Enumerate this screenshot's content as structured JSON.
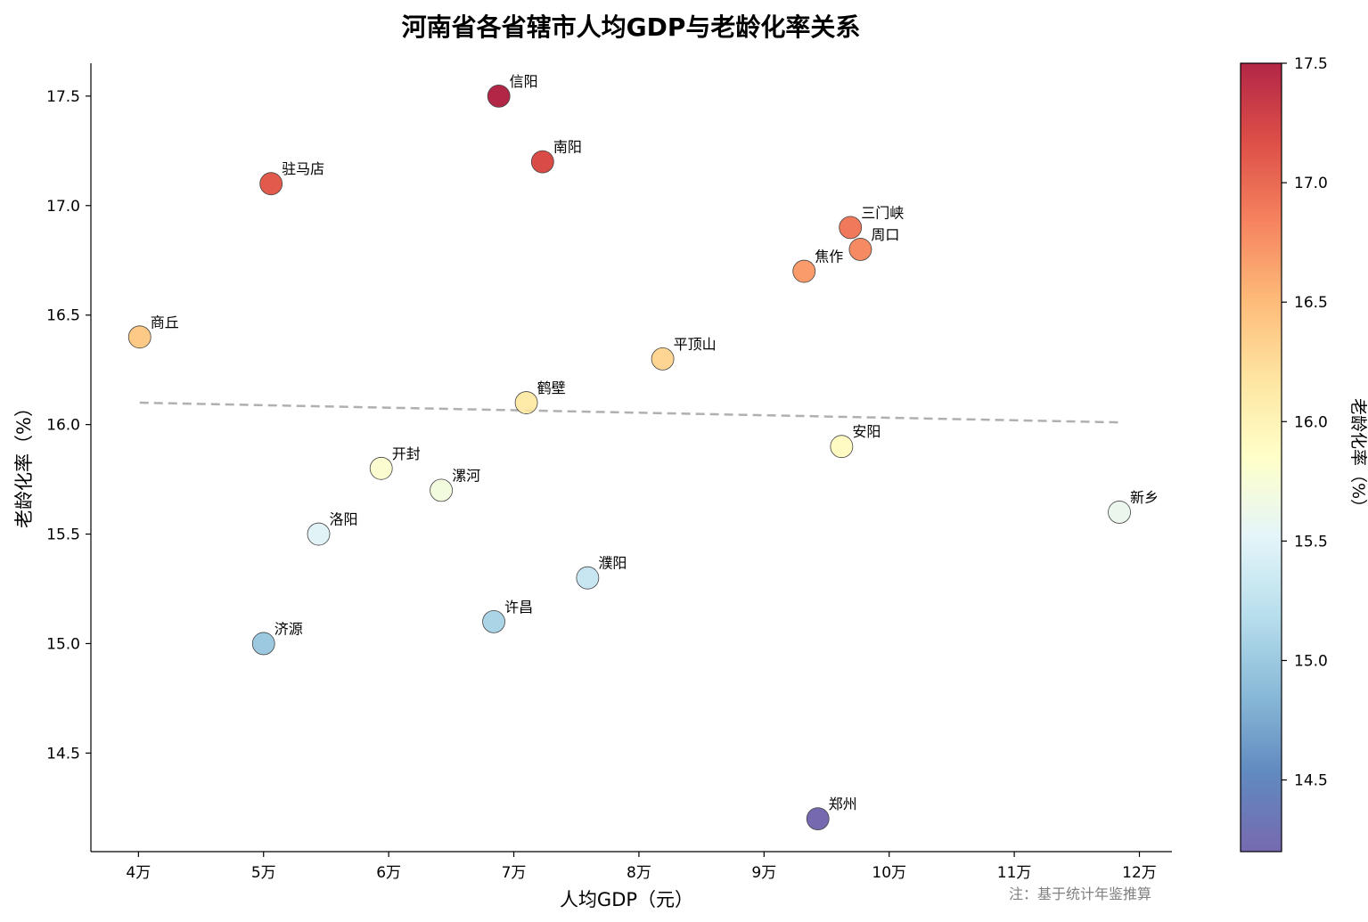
{
  "chart_data": {
    "type": "scatter",
    "title": "河南省各省辖市人均GDP与老龄化率关系",
    "xlabel": "人均GDP（元）",
    "ylabel": "老龄化率（%）",
    "xlim": [
      36200,
      122600
    ],
    "ylim": [
      14.05,
      17.65
    ],
    "x_ticks": [
      40000,
      50000,
      60000,
      70000,
      80000,
      90000,
      100000,
      110000,
      120000
    ],
    "x_tick_labels": [
      "4万",
      "5万",
      "6万",
      "7万",
      "8万",
      "9万",
      "10万",
      "11万",
      "12万"
    ],
    "y_ticks": [
      14.5,
      15.0,
      15.5,
      16.0,
      16.5,
      17.0,
      17.5
    ],
    "y_tick_labels": [
      "14.5",
      "15.0",
      "15.5",
      "16.0",
      "16.5",
      "17.0",
      "17.5"
    ],
    "points": [
      {
        "label": "信阳",
        "x": 68800,
        "y": 17.5
      },
      {
        "label": "南阳",
        "x": 72300,
        "y": 17.2
      },
      {
        "label": "驻马店",
        "x": 50600,
        "y": 17.1
      },
      {
        "label": "三门峡",
        "x": 96900,
        "y": 16.9
      },
      {
        "label": "周口",
        "x": 97700,
        "y": 16.8
      },
      {
        "label": "焦作",
        "x": 93200,
        "y": 16.7
      },
      {
        "label": "商丘",
        "x": 40100,
        "y": 16.4
      },
      {
        "label": "平顶山",
        "x": 81900,
        "y": 16.3
      },
      {
        "label": "鹤壁",
        "x": 71000,
        "y": 16.1
      },
      {
        "label": "安阳",
        "x": 96200,
        "y": 15.9
      },
      {
        "label": "开封",
        "x": 59400,
        "y": 15.8
      },
      {
        "label": "漯河",
        "x": 64200,
        "y": 15.7
      },
      {
        "label": "新乡",
        "x": 118400,
        "y": 15.6
      },
      {
        "label": "洛阳",
        "x": 54400,
        "y": 15.5
      },
      {
        "label": "濮阳",
        "x": 75900,
        "y": 15.3
      },
      {
        "label": "许昌",
        "x": 68400,
        "y": 15.1
      },
      {
        "label": "济源",
        "x": 50000,
        "y": 15.0
      },
      {
        "label": "郑州",
        "x": 94300,
        "y": 14.2
      }
    ],
    "trendline": {
      "style": "dashed",
      "color": "#b0b0b0",
      "x": [
        40100,
        118400
      ],
      "y": [
        16.1,
        16.01
      ]
    },
    "colorbar": {
      "label": "老龄化率（%）",
      "range": [
        14.2,
        17.5
      ],
      "ticks": [
        14.5,
        15.0,
        15.5,
        16.0,
        16.5,
        17.0,
        17.5
      ],
      "tick_labels": [
        "14.5",
        "15.0",
        "15.5",
        "16.0",
        "16.5",
        "17.0",
        "17.5"
      ],
      "colormap": "RdYlBu_r",
      "stops": [
        "#5e4fa2",
        "#4575b4",
        "#74add1",
        "#abd9e9",
        "#e0f3f8",
        "#ffffbf",
        "#fee090",
        "#fdae61",
        "#f46d43",
        "#d73027",
        "#a50026"
      ]
    },
    "legend": "none",
    "grid": false,
    "note": "注：基于统计年鉴推算"
  }
}
